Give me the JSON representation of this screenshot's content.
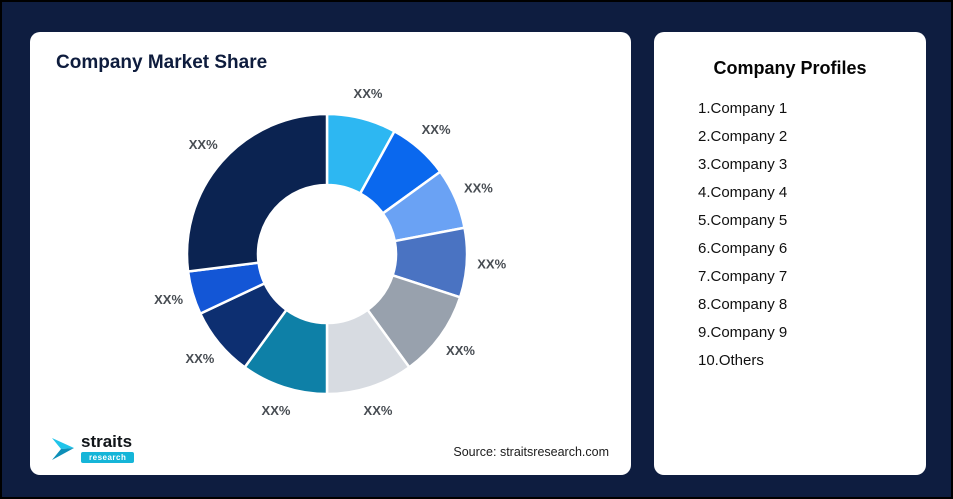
{
  "page": {
    "background": "#0e1d40"
  },
  "market_share_card": {
    "title": "Company Market Share",
    "source": "Source: straitsresearch.com",
    "logo": {
      "name": "straits",
      "sub": "research"
    }
  },
  "profiles_card": {
    "title": "Company Profiles",
    "items": [
      "1.Company 1",
      "2.Company 2",
      "3.Company 3",
      "4.Company 4",
      "5.Company 5",
      "6.Company 6",
      "7.Company 7",
      "8.Company 8",
      "9.Company 9",
      "10.Others"
    ]
  },
  "chart_data": {
    "type": "pie",
    "subtype": "donut",
    "title": "Company Market Share",
    "categories": [
      "Company 1",
      "Company 2",
      "Company 3",
      "Company 4",
      "Company 5",
      "Company 6",
      "Company 7",
      "Company 8",
      "Company 9",
      "Others"
    ],
    "values": [
      8,
      7,
      7,
      8,
      10,
      10,
      10,
      8,
      5,
      27
    ],
    "labels": [
      "XX%",
      "XX%",
      "XX%",
      "XX%",
      "XX%",
      "XX%",
      "XX%",
      "XX%",
      "XX%",
      "XX%"
    ],
    "colors": [
      "#2db7f2",
      "#0a68ee",
      "#6aa2f4",
      "#4a73c2",
      "#98a1ad",
      "#d7dbe1",
      "#0e80a7",
      "#0d2f71",
      "#1356d6",
      "#0b2351"
    ],
    "start_angle_deg": 0,
    "direction": "clockwise",
    "inner_radius_ratio": 0.49,
    "legend": "none",
    "source": "Source: straitsresearch.com"
  }
}
